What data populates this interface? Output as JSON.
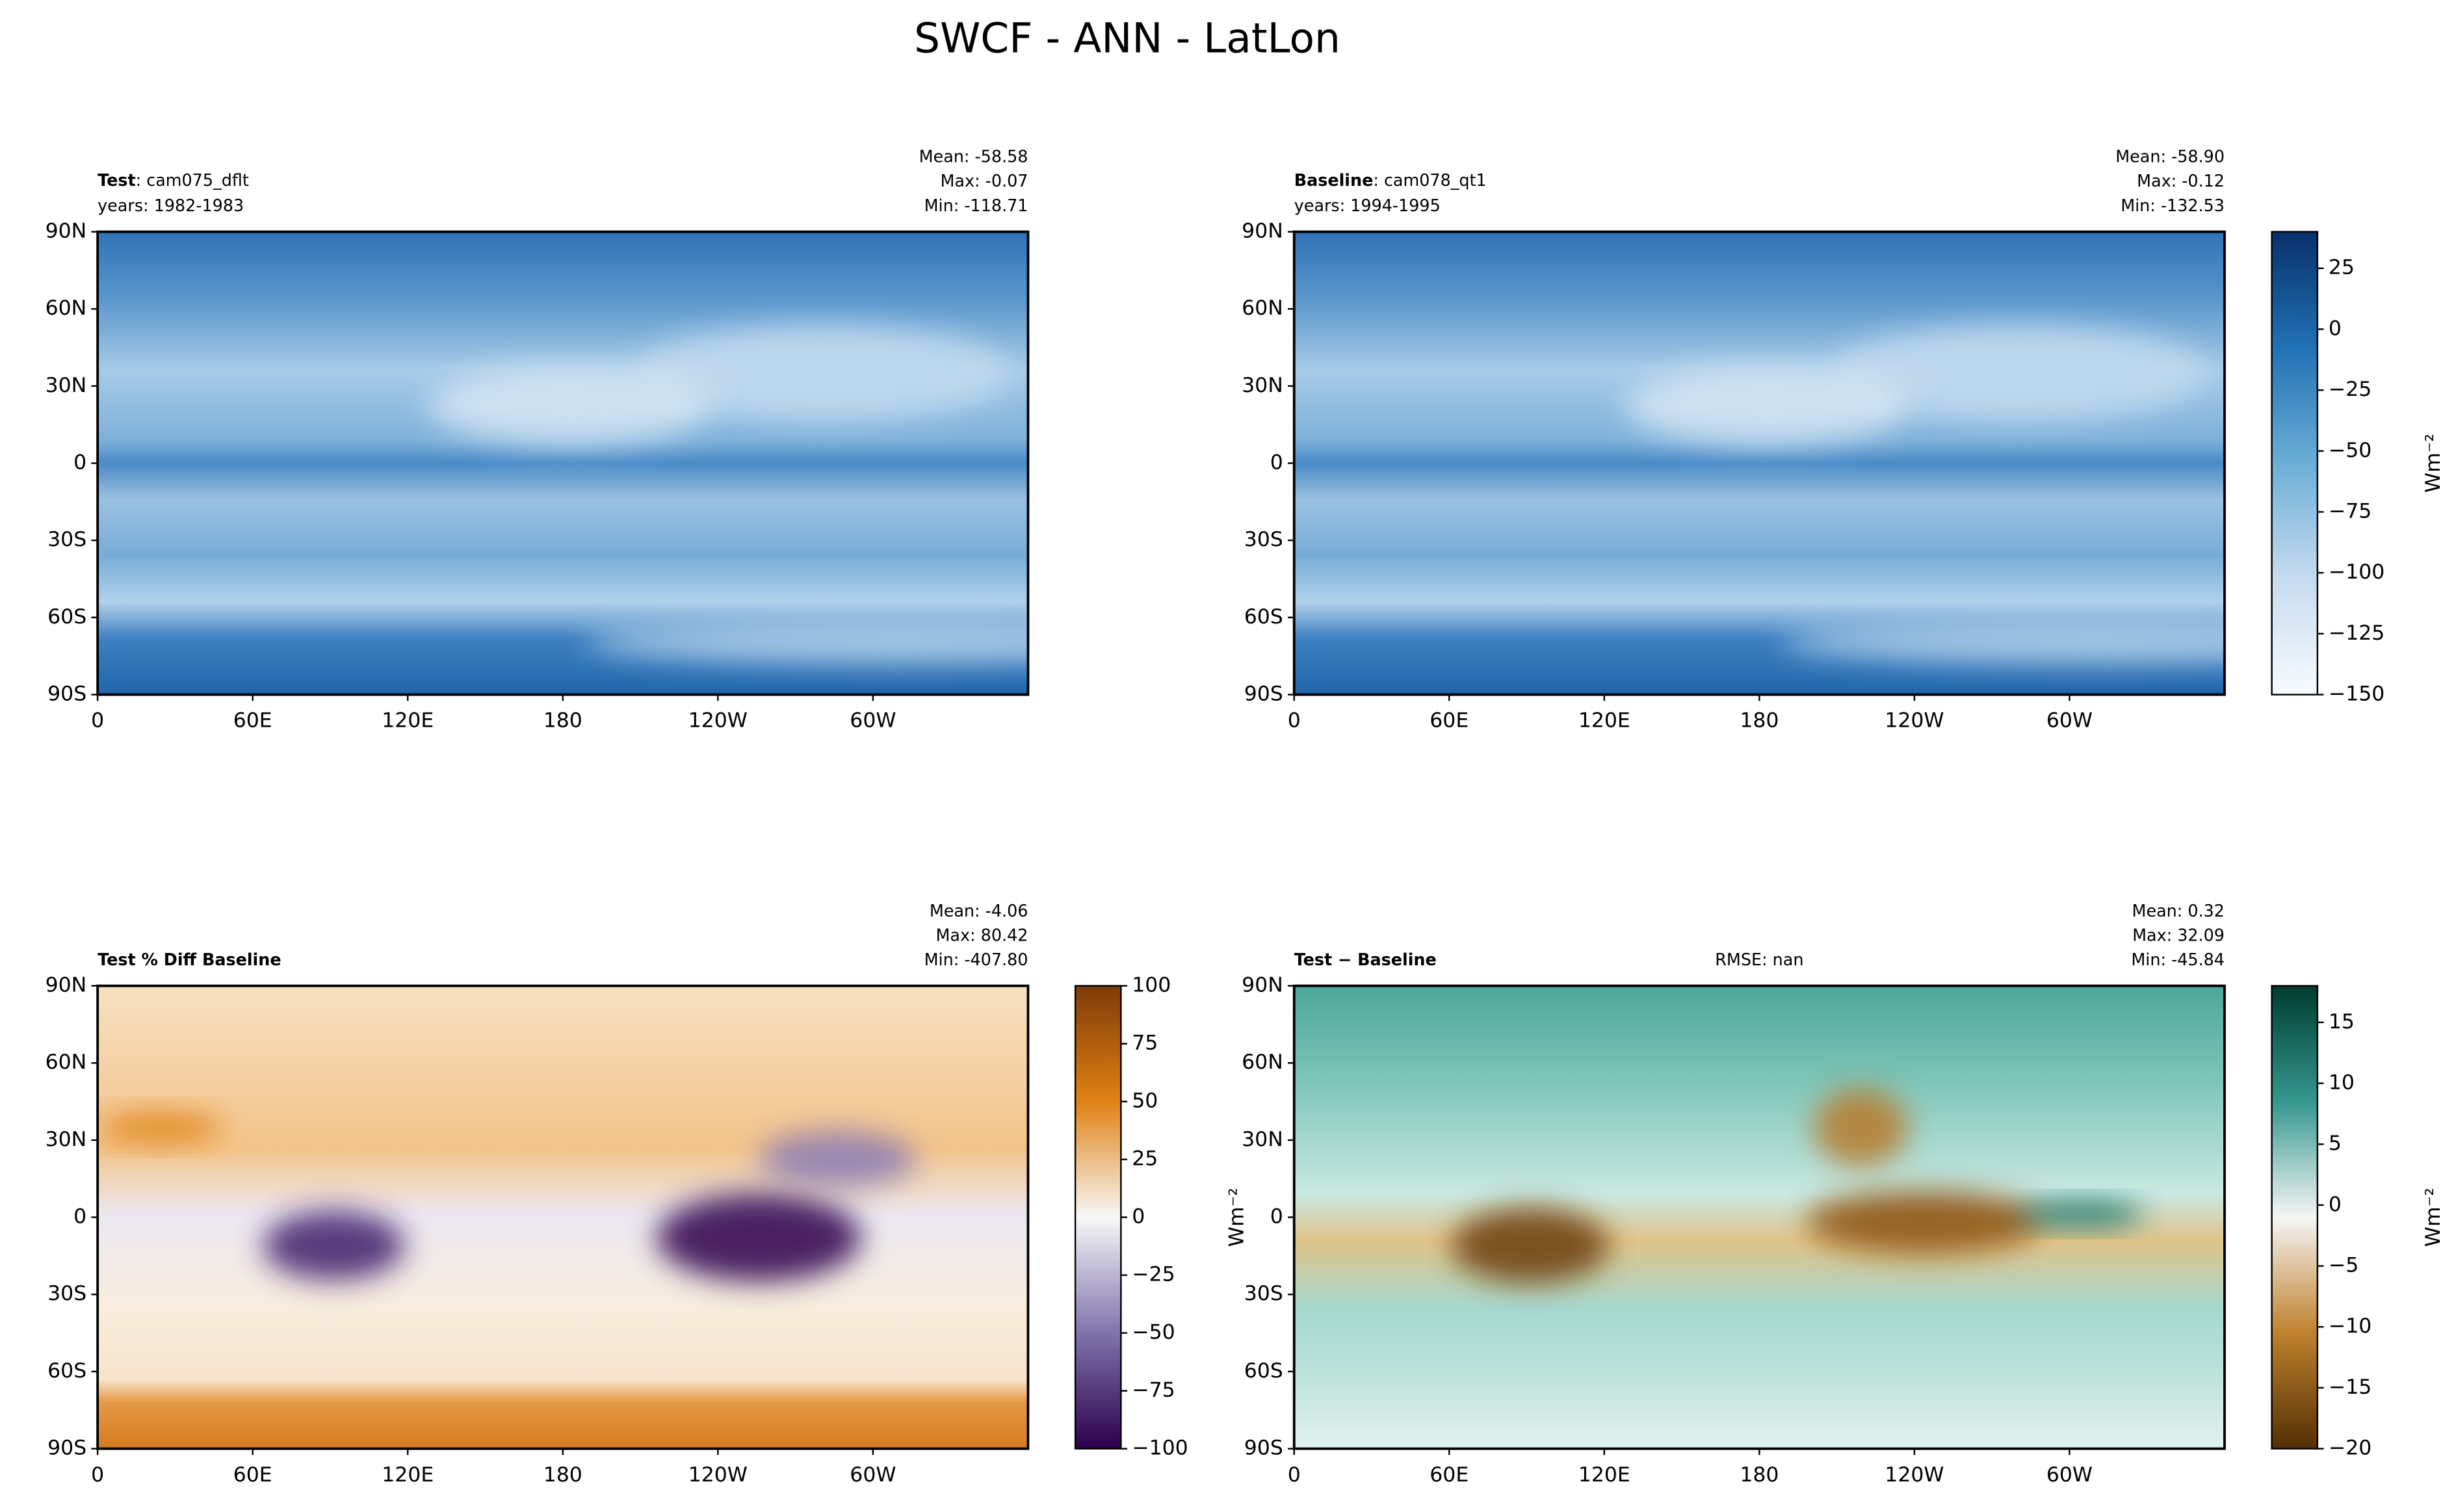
{
  "title": "SWCF - ANN - LatLon",
  "chart_data": [
    {
      "type": "map",
      "title_bold": "Test",
      "title": ": cam075_dflt",
      "subtitle": "years: 1982-1983",
      "stats": [
        "Mean: -58.58",
        "Max: -0.07",
        "Min: -118.71"
      ],
      "xlim": [
        0,
        360
      ],
      "ylim": [
        -90,
        90
      ],
      "xticks": [
        0,
        {
          "value": 60,
          "label": "60E"
        },
        {
          "value": 120,
          "label": "120E"
        },
        180,
        {
          "value": 240,
          "label": "120W"
        },
        {
          "value": 300,
          "label": "60W"
        }
      ],
      "yticks": [
        {
          "value": -90,
          "label": "90S"
        },
        {
          "value": -60,
          "label": "60S"
        },
        {
          "value": -30,
          "label": "30S"
        },
        0,
        {
          "value": 30,
          "label": "30N"
        },
        {
          "value": 60,
          "label": "60N"
        },
        {
          "value": 90,
          "label": "90N"
        }
      ]
    },
    {
      "type": "map",
      "title_bold": "Baseline",
      "title": ": cam078_qt1",
      "subtitle": "years: 1994-1995",
      "stats": [
        "Mean: -58.90",
        "Max: -0.12",
        "Min: -132.53"
      ],
      "xlim": [
        0,
        360
      ],
      "ylim": [
        -90,
        90
      ],
      "xticks": [
        0,
        {
          "value": 60,
          "label": "60E"
        },
        {
          "value": 120,
          "label": "120E"
        },
        180,
        {
          "value": 240,
          "label": "120W"
        },
        {
          "value": 300,
          "label": "60W"
        }
      ],
      "yticks": [
        {
          "value": -90,
          "label": "90S"
        },
        {
          "value": -60,
          "label": "60S"
        },
        {
          "value": -30,
          "label": "30S"
        },
        0,
        {
          "value": 30,
          "label": "30N"
        },
        {
          "value": 60,
          "label": "60N"
        },
        {
          "value": 90,
          "label": "90N"
        }
      ],
      "colorbar": {
        "clim": [
          -150,
          40
        ],
        "label": "Wm⁻²",
        "colors": [
          "#f7fbff",
          "#c6dbef",
          "#6baed6",
          "#2171b5",
          "#08306b"
        ],
        "ticks": [
          {
            "value": -150,
            "label": "−150"
          },
          {
            "value": -125,
            "label": "−125"
          },
          {
            "value": -100,
            "label": "−100"
          },
          {
            "value": -75,
            "label": "−75"
          },
          {
            "value": -50,
            "label": "−50"
          },
          {
            "value": -25,
            "label": "−25"
          },
          0,
          25
        ]
      }
    },
    {
      "type": "map",
      "title_bold": "Test % Diff Baseline",
      "stats": [
        "Mean: -4.06",
        "Max: 80.42",
        "Min: -407.80"
      ],
      "xlim": [
        0,
        360
      ],
      "ylim": [
        -90,
        90
      ],
      "xticks": [
        0,
        {
          "value": 60,
          "label": "60E"
        },
        {
          "value": 120,
          "label": "120E"
        },
        180,
        {
          "value": 240,
          "label": "120W"
        },
        {
          "value": 300,
          "label": "60W"
        }
      ],
      "yticks": [
        {
          "value": -90,
          "label": "90S"
        },
        {
          "value": -60,
          "label": "60S"
        },
        {
          "value": -30,
          "label": "30S"
        },
        0,
        {
          "value": 30,
          "label": "30N"
        },
        {
          "value": 60,
          "label": "60N"
        },
        {
          "value": 90,
          "label": "90N"
        }
      ],
      "colorbar": {
        "clim": [
          -100,
          100
        ],
        "label": "Wm⁻²",
        "colors": [
          "#2d004b",
          "#8073ac",
          "#f7f7f7",
          "#e08214",
          "#7f3b08"
        ],
        "ticks": [
          {
            "value": -100,
            "label": "−100"
          },
          {
            "value": -75,
            "label": "−75"
          },
          {
            "value": -50,
            "label": "−50"
          },
          {
            "value": -25,
            "label": "−25"
          },
          0,
          25,
          50,
          75,
          100
        ]
      }
    },
    {
      "type": "map",
      "title_bold": "Test − Baseline",
      "annotation": "RMSE: nan",
      "stats": [
        "Mean:  0.32",
        "Max: 32.09",
        "Min: -45.84"
      ],
      "xlim": [
        0,
        360
      ],
      "ylim": [
        -90,
        90
      ],
      "xticks": [
        0,
        {
          "value": 60,
          "label": "60E"
        },
        {
          "value": 120,
          "label": "120E"
        },
        180,
        {
          "value": 240,
          "label": "120W"
        },
        {
          "value": 300,
          "label": "60W"
        }
      ],
      "yticks": [
        {
          "value": -90,
          "label": "90S"
        },
        {
          "value": -60,
          "label": "60S"
        },
        {
          "value": -30,
          "label": "30S"
        },
        0,
        {
          "value": 30,
          "label": "30N"
        },
        {
          "value": 60,
          "label": "60N"
        },
        {
          "value": 90,
          "label": "90N"
        }
      ],
      "colorbar": {
        "clim": [
          -20,
          18
        ],
        "label": "Wm⁻²",
        "colors": [
          "#543005",
          "#bf812d",
          "#f5f5f5",
          "#35978f",
          "#003c30"
        ],
        "ticks": [
          {
            "value": -20,
            "label": "−20"
          },
          {
            "value": -15,
            "label": "−15"
          },
          {
            "value": -10,
            "label": "−10"
          },
          {
            "value": -5,
            "label": "−5"
          },
          0,
          5,
          10,
          15
        ]
      }
    }
  ]
}
